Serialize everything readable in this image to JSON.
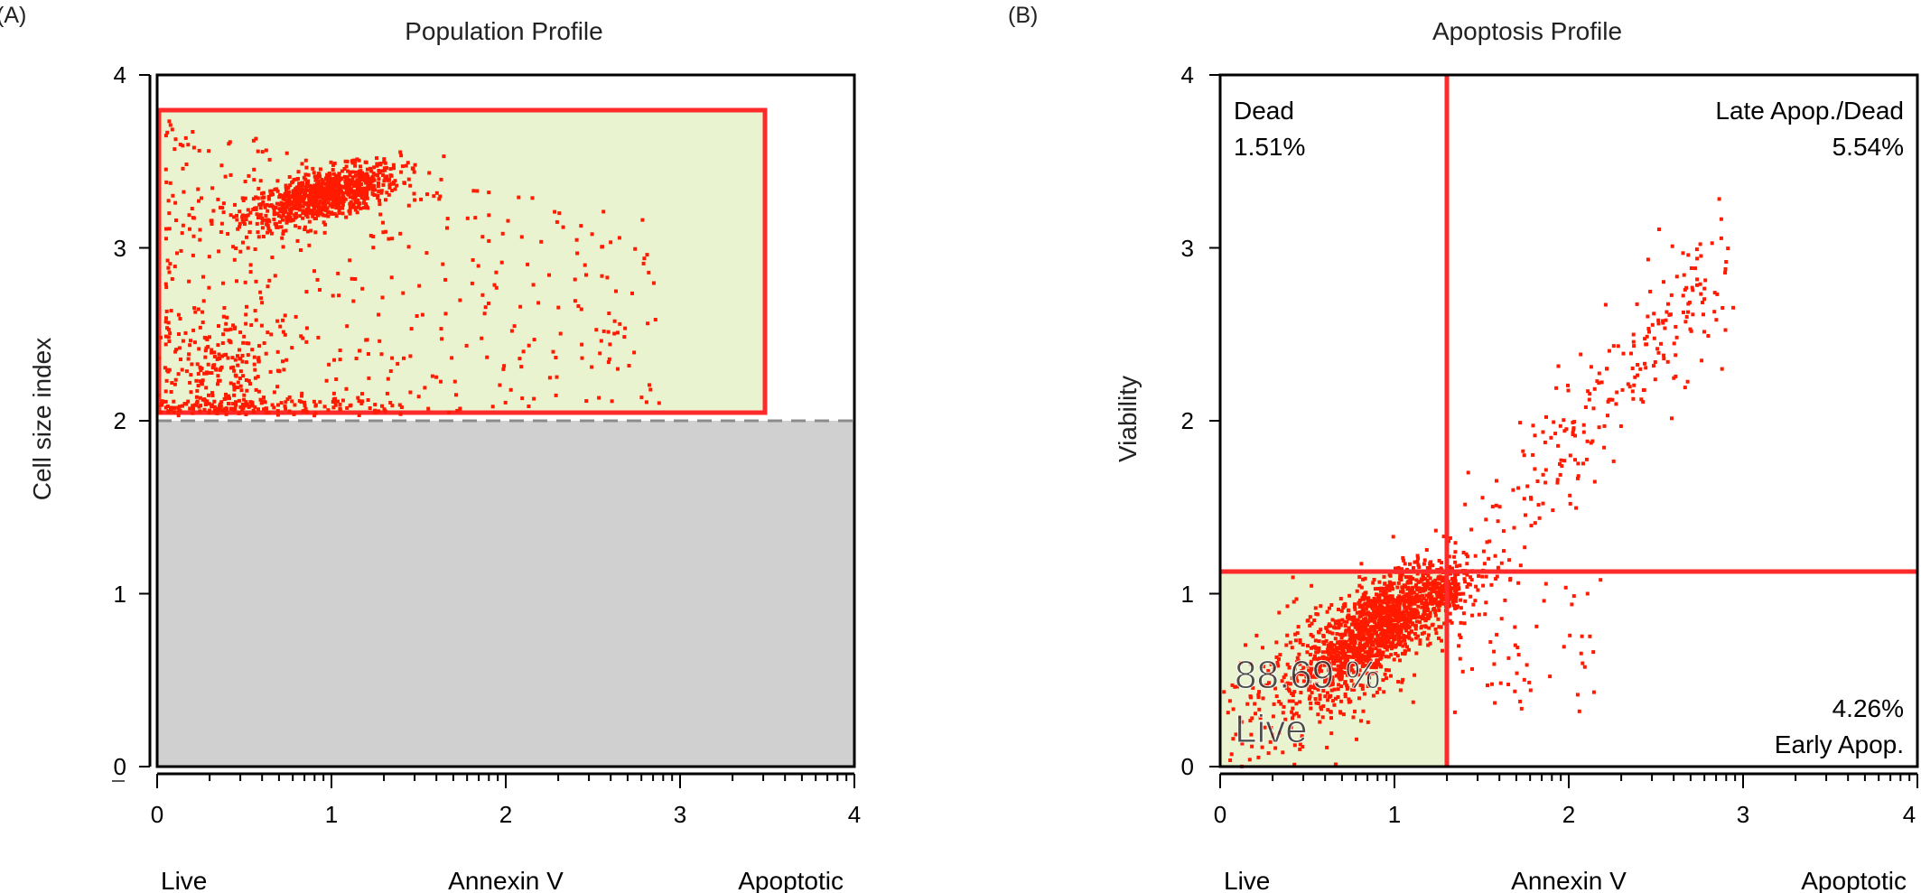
{
  "panels": [
    {
      "panel_label": "(A)",
      "title": "Population Profile",
      "ylabel": "Cell size index",
      "x_tick_labels": [
        "0",
        "1",
        "2",
        "3",
        "4"
      ],
      "y_tick_labels": [
        "0",
        "1",
        "2",
        "3",
        "4"
      ],
      "bottom_labels": {
        "left": "Live",
        "center": "Annexin V",
        "right": "Apoptotic"
      }
    },
    {
      "panel_label": "(B)",
      "title": "Apoptosis Profile",
      "ylabel": "Viability",
      "x_tick_labels": [
        "0",
        "1",
        "2",
        "3",
        "4"
      ],
      "y_tick_labels": [
        "0",
        "1",
        "2",
        "3",
        "4"
      ],
      "bottom_labels": {
        "left": "Live",
        "center": "Annexin V",
        "right": "Apoptotic"
      },
      "quadrants": {
        "dead": {
          "name": "Dead",
          "pct": "1.51%"
        },
        "late": {
          "name": "Late Apop./Dead",
          "pct": "5.54%"
        },
        "early": {
          "name": "Early Apop.",
          "pct": "4.26%"
        },
        "live": {
          "name": "Live",
          "pct": "88.69 %"
        }
      }
    }
  ],
  "colors": {
    "dots": "#ff1a00",
    "gate": "#ff2a2a",
    "gate_fill": "#eaf3d0",
    "excluded_fill": "#d0d0d0",
    "threshold_line": "#8c8c8c",
    "axis": "#000000"
  },
  "chart_data": [
    {
      "type": "scatter",
      "title": "Population Profile",
      "xlabel": "Annexin V",
      "ylabel": "Cell size index",
      "xlim": [
        0,
        4
      ],
      "ylim": [
        0,
        4
      ],
      "x_ticks": [
        0,
        1,
        2,
        3,
        4
      ],
      "y_ticks": [
        0,
        1,
        2,
        3,
        4
      ],
      "x_scale_minor": "log-like minor ticks",
      "gate_rect": {
        "x": [
          0,
          3.5
        ],
        "y": [
          2.05,
          3.8
        ]
      },
      "excluded_region": {
        "y": [
          0,
          2.0
        ]
      },
      "threshold_y": 2.0,
      "clusters": [
        {
          "cx": 0.95,
          "cy": 3.3,
          "sx": 0.22,
          "sy": 0.07,
          "tilt": 0.25,
          "n": 900
        },
        {
          "cx": 0.4,
          "cy": 2.3,
          "sx": 0.2,
          "sy": 0.15,
          "tilt": 0,
          "n": 170
        },
        {
          "cx": 0.5,
          "cy": 2.08,
          "sx": 0.45,
          "sy": 0.03,
          "tilt": 0,
          "n": 190
        }
      ],
      "scatter_region": {
        "x": [
          0.05,
          2.9
        ],
        "y": [
          2.05,
          3.75
        ],
        "n": 420
      }
    },
    {
      "type": "scatter",
      "title": "Apoptosis Profile",
      "xlabel": "Annexin V",
      "ylabel": "Viability",
      "xlim": [
        0,
        4
      ],
      "ylim": [
        0,
        4
      ],
      "x_ticks": [
        0,
        1,
        2,
        3,
        4
      ],
      "y_ticks": [
        0,
        1,
        2,
        3,
        4
      ],
      "quadrant_x": 1.3,
      "quadrant_y": 1.13,
      "live_gate": {
        "x": [
          0,
          1.3
        ],
        "y": [
          0,
          1.13
        ]
      },
      "quadrant_percentages": {
        "Dead": 1.51,
        "Late Apop./Dead": 5.54,
        "Early Apop.": 4.26,
        "Live": 88.69
      },
      "clusters": [
        {
          "cx": 0.92,
          "cy": 0.82,
          "sx": 0.2,
          "sy": 0.13,
          "tilt": 0.6,
          "n": 1300
        },
        {
          "cx": 0.55,
          "cy": 0.5,
          "sx": 0.32,
          "sy": 0.2,
          "tilt": 0.5,
          "n": 320
        },
        {
          "cx": 1.3,
          "cy": 1.02,
          "sx": 0.06,
          "sy": 0.08,
          "tilt": 0,
          "n": 120
        }
      ],
      "trail": {
        "from": [
          1.3,
          1.0
        ],
        "to": [
          2.85,
          2.9
        ],
        "spread": 0.28,
        "n": 260
      },
      "early_scatter": {
        "x": [
          1.3,
          2.2
        ],
        "y": [
          0.3,
          1.1
        ],
        "n": 60
      }
    }
  ]
}
